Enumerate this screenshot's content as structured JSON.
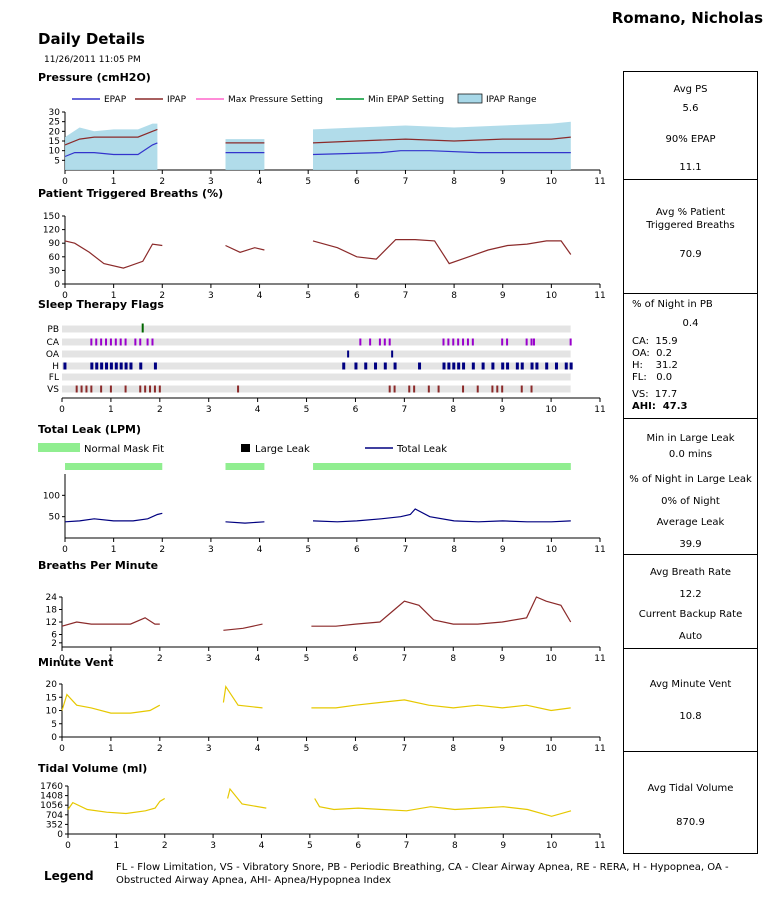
{
  "patient_name": "Romano, Nicholas",
  "page_title": "Daily Details",
  "report_datetime": "11/26/2011 11:05 PM",
  "colors": {
    "epap": "#3333cc",
    "ipap": "#8b2a2a",
    "max_pressure": "#ff66cc",
    "min_epap": "#009933",
    "ipap_range": "#a8d8e8",
    "triggered": "#8b2a2a",
    "ca": "#9900cc",
    "h": "#000080",
    "vs": "#8b2a2a",
    "pb": "#006600",
    "mask_fit": "#90ee90",
    "large_leak": "#000000",
    "total_leak": "#000080",
    "bpm": "#8b2a2a",
    "minute_vent": "#e6c800",
    "tidal": "#e6c800"
  },
  "chart_data": [
    {
      "id": "pressure",
      "type": "line",
      "title": "Pressure (cmH2O)",
      "legend": [
        "EPAP",
        "IPAP",
        "Max Pressure Setting",
        "Min EPAP Setting",
        "IPAP Range"
      ],
      "xlim": [
        0,
        11
      ],
      "ylim": [
        0,
        30
      ],
      "xticks": [
        "0",
        "1",
        "2",
        "3",
        "4",
        "5",
        "6",
        "7",
        "8",
        "9",
        "10",
        "11"
      ],
      "yticks": [
        "5",
        "10",
        "15",
        "20",
        "25",
        "30"
      ],
      "segments": [
        [
          0,
          1.9
        ],
        [
          3.3,
          4.1
        ],
        [
          5.1,
          10.4
        ]
      ],
      "series": [
        {
          "name": "EPAP",
          "x": [
            0,
            0.2,
            0.6,
            1.0,
            1.5,
            1.8,
            1.9,
            3.3,
            4.1,
            5.1,
            6.5,
            6.9,
            7.5,
            8.5,
            9.5,
            10.4
          ],
          "y": [
            7,
            9,
            9,
            8,
            8,
            13,
            14,
            9,
            9,
            8,
            9,
            10,
            10,
            9,
            9,
            9
          ]
        },
        {
          "name": "IPAP",
          "x": [
            0,
            0.3,
            0.6,
            1.0,
            1.5,
            1.8,
            1.9,
            3.3,
            4.1,
            5.1,
            6.0,
            7.0,
            8.0,
            9.0,
            10.0,
            10.4
          ],
          "y": [
            13,
            16,
            17,
            17,
            17,
            20,
            21,
            14,
            14,
            14,
            15,
            16,
            15,
            16,
            16,
            17
          ]
        },
        {
          "name": "IPAP Range",
          "x": [
            0,
            0.3,
            0.6,
            1.0,
            1.5,
            1.8,
            1.9,
            3.3,
            4.1,
            5.1,
            6.0,
            7.0,
            8.0,
            9.0,
            10.0,
            10.4
          ],
          "y": [
            17,
            22,
            20,
            21,
            21,
            24,
            24,
            16,
            16,
            21,
            22,
            23,
            22,
            23,
            24,
            25
          ]
        }
      ]
    },
    {
      "id": "triggered",
      "type": "line",
      "title": "Patient Triggered Breaths (%)",
      "xlim": [
        0,
        11
      ],
      "ylim": [
        0,
        150
      ],
      "xticks": [
        "0",
        "1",
        "2",
        "3",
        "4",
        "5",
        "6",
        "7",
        "8",
        "9",
        "10",
        "11"
      ],
      "yticks": [
        "0",
        "30",
        "60",
        "90",
        "120",
        "150"
      ],
      "segments": [
        [
          0,
          2.0
        ],
        [
          3.3,
          4.1
        ],
        [
          5.1,
          10.4
        ]
      ],
      "series": [
        {
          "name": "Triggered",
          "x": [
            0,
            0.2,
            0.5,
            0.8,
            1.2,
            1.6,
            1.8,
            2.0,
            3.3,
            3.6,
            3.9,
            4.1,
            5.1,
            5.6,
            6.0,
            6.4,
            6.8,
            7.2,
            7.6,
            7.9,
            8.3,
            8.7,
            9.1,
            9.5,
            9.9,
            10.2,
            10.4
          ],
          "y": [
            95,
            90,
            70,
            45,
            35,
            50,
            88,
            85,
            85,
            70,
            80,
            75,
            95,
            80,
            60,
            55,
            98,
            98,
            95,
            45,
            60,
            75,
            85,
            88,
            95,
            95,
            65
          ]
        }
      ]
    },
    {
      "id": "flags",
      "type": "scatter",
      "title": "Sleep Therapy Flags",
      "xlim": [
        0,
        11
      ],
      "xticks": [
        "0",
        "1",
        "2",
        "3",
        "4",
        "5",
        "6",
        "7",
        "8",
        "9",
        "10",
        "11"
      ],
      "rows": [
        "PB",
        "CA",
        "OA",
        "H",
        "FL",
        "VS"
      ],
      "events": {
        "PB": [
          1.65
        ],
        "CA": [
          0.6,
          0.7,
          0.8,
          0.9,
          1.0,
          1.1,
          1.2,
          1.3,
          1.5,
          1.6,
          1.75,
          1.85,
          6.1,
          6.3,
          6.5,
          6.6,
          6.7,
          7.8,
          7.9,
          8.0,
          8.1,
          8.2,
          8.3,
          8.4,
          9.0,
          9.1,
          9.5,
          9.6,
          9.65,
          10.4
        ],
        "OA": [
          5.85,
          6.75
        ],
        "H": [
          0.05,
          0.6,
          0.7,
          0.8,
          0.9,
          1.0,
          1.1,
          1.2,
          1.3,
          1.4,
          1.6,
          1.9,
          5.75,
          6.0,
          6.2,
          6.4,
          6.6,
          6.8,
          7.3,
          7.8,
          7.9,
          8.0,
          8.1,
          8.2,
          8.4,
          8.6,
          8.8,
          9.0,
          9.1,
          9.3,
          9.4,
          9.6,
          9.7,
          9.9,
          10.1,
          10.3,
          10.4
        ],
        "FL": [],
        "VS": [
          0.3,
          0.4,
          0.5,
          0.6,
          0.8,
          1.0,
          1.3,
          1.6,
          1.7,
          1.8,
          1.9,
          2.0,
          3.6,
          6.7,
          6.8,
          7.1,
          7.2,
          7.5,
          7.7,
          8.2,
          8.5,
          8.8,
          8.9,
          9.0,
          9.4,
          9.6
        ]
      }
    },
    {
      "id": "leak",
      "type": "line",
      "title": "Total Leak (LPM)",
      "legend": [
        "Normal Mask Fit",
        "Large Leak",
        "Total Leak"
      ],
      "xlim": [
        0,
        11
      ],
      "ylim": [
        0,
        150
      ],
      "xticks": [
        "0",
        "1",
        "2",
        "3",
        "4",
        "5",
        "6",
        "7",
        "8",
        "9",
        "10",
        "11"
      ],
      "yticks": [
        "50",
        "100"
      ],
      "mask_fit": [
        [
          0,
          2.0
        ],
        [
          3.3,
          4.1
        ],
        [
          5.1,
          10.4
        ]
      ],
      "segments": [
        [
          0,
          2.0
        ],
        [
          3.3,
          4.1
        ],
        [
          5.1,
          10.4
        ]
      ],
      "series": [
        {
          "name": "Total Leak",
          "x": [
            0,
            0.3,
            0.6,
            1.0,
            1.4,
            1.7,
            1.9,
            2.0,
            3.3,
            3.7,
            4.1,
            5.1,
            5.6,
            6.0,
            6.5,
            6.9,
            7.1,
            7.2,
            7.5,
            8.0,
            8.5,
            9.0,
            9.5,
            10.0,
            10.4
          ],
          "y": [
            38,
            40,
            45,
            40,
            40,
            45,
            55,
            58,
            38,
            35,
            38,
            40,
            38,
            40,
            45,
            50,
            55,
            68,
            50,
            40,
            38,
            40,
            38,
            38,
            40
          ]
        }
      ]
    },
    {
      "id": "bpm",
      "type": "line",
      "title": "Breaths Per Minute",
      "xlim": [
        0,
        11
      ],
      "ylim": [
        0,
        24
      ],
      "xticks": [
        "0",
        "1",
        "2",
        "3",
        "4",
        "5",
        "6",
        "7",
        "8",
        "9",
        "10",
        "11"
      ],
      "yticks": [
        "2",
        "6",
        "12",
        "18",
        "24"
      ],
      "segments": [
        [
          0,
          2.0
        ],
        [
          3.3,
          4.1
        ],
        [
          5.1,
          10.4
        ]
      ],
      "series": [
        {
          "name": "BPM",
          "x": [
            0,
            0.3,
            0.6,
            1.0,
            1.4,
            1.7,
            1.9,
            2.0,
            3.3,
            3.7,
            4.1,
            5.1,
            5.6,
            6.0,
            6.5,
            6.8,
            7.0,
            7.3,
            7.6,
            8.0,
            8.5,
            9.0,
            9.5,
            9.7,
            9.9,
            10.2,
            10.4
          ],
          "y": [
            10,
            12,
            11,
            11,
            11,
            14,
            11,
            11,
            8,
            9,
            11,
            10,
            10,
            11,
            12,
            18,
            22,
            20,
            13,
            11,
            11,
            12,
            14,
            24,
            22,
            20,
            12
          ]
        }
      ]
    },
    {
      "id": "minvent",
      "type": "line",
      "title": "Minute Vent",
      "xlim": [
        0,
        11
      ],
      "ylim": [
        0,
        20
      ],
      "xticks": [
        "0",
        "1",
        "2",
        "3",
        "4",
        "5",
        "6",
        "7",
        "8",
        "9",
        "10",
        "11"
      ],
      "yticks": [
        "0",
        "5",
        "10",
        "15",
        "20"
      ],
      "segments": [
        [
          0,
          2.0
        ],
        [
          3.3,
          4.1
        ],
        [
          5.1,
          10.4
        ]
      ],
      "series": [
        {
          "name": "Minute Vent",
          "x": [
            0,
            0.1,
            0.3,
            0.6,
            1.0,
            1.4,
            1.8,
            2.0,
            3.3,
            3.35,
            3.6,
            4.1,
            5.1,
            5.6,
            6.0,
            6.5,
            7.0,
            7.5,
            8.0,
            8.5,
            9.0,
            9.5,
            10.0,
            10.4
          ],
          "y": [
            10,
            16,
            12,
            11,
            9,
            9,
            10,
            12,
            13,
            19,
            12,
            11,
            11,
            11,
            12,
            13,
            14,
            12,
            11,
            12,
            11,
            12,
            10,
            11
          ]
        }
      ]
    },
    {
      "id": "tidal",
      "type": "line",
      "title": "Tidal Volume (ml)",
      "xlim": [
        0,
        11
      ],
      "ylim": [
        0,
        1760
      ],
      "xticks": [
        "0",
        "1",
        "2",
        "3",
        "4",
        "5",
        "6",
        "7",
        "8",
        "9",
        "10",
        "11"
      ],
      "yticks": [
        "0",
        "352",
        "704",
        "1056",
        "1408",
        "1760"
      ],
      "segments": [
        [
          0,
          2.0
        ],
        [
          3.3,
          4.1
        ],
        [
          5.1,
          10.4
        ]
      ],
      "series": [
        {
          "name": "Tidal Volume",
          "x": [
            0,
            0.1,
            0.4,
            0.8,
            1.2,
            1.6,
            1.8,
            1.9,
            2.0,
            3.3,
            3.35,
            3.6,
            4.1,
            5.1,
            5.2,
            5.5,
            6.0,
            6.5,
            7.0,
            7.5,
            8.0,
            8.5,
            9.0,
            9.5,
            10.0,
            10.4
          ],
          "y": [
            900,
            1150,
            900,
            800,
            750,
            850,
            950,
            1200,
            1300,
            1300,
            1650,
            1100,
            950,
            1300,
            1000,
            900,
            950,
            900,
            850,
            1000,
            900,
            950,
            1000,
            900,
            650,
            850
          ]
        }
      ]
    }
  ],
  "stats": {
    "pressure": {
      "avg_ps_label": "Avg PS",
      "avg_ps": "5.6",
      "epap90_label": "90% EPAP",
      "epap90": "11.1"
    },
    "triggered": {
      "label_1": "Avg % Patient",
      "label_2": "Triggered Breaths",
      "value": "70.9"
    },
    "flags": {
      "pb_label": "% of Night in PB",
      "pb": "0.4",
      "ca": "CA:  15.9",
      "oa": "OA:  0.2",
      "h": "H:    31.2",
      "fl": "FL:   0.0",
      "vs": "VS:  17.7",
      "ahi": "AHI:  47.3"
    },
    "leak": {
      "min_large_label": "Min in Large Leak",
      "min_large": "0.0 mins",
      "pct_large_label": "% of Night in Large Leak",
      "pct_large": "0% of Night",
      "avg_leak_label": "Average Leak",
      "avg_leak": "39.9"
    },
    "bpm": {
      "avg_label": "Avg Breath Rate",
      "avg": "12.2",
      "backup_label": "Current Backup Rate",
      "backup": "Auto"
    },
    "minvent": {
      "label": "Avg Minute Vent",
      "value": "10.8"
    },
    "tidal": {
      "label": "Avg Tidal Volume",
      "value": "870.9"
    }
  },
  "legend": {
    "label": "Legend",
    "text": "FL - Flow Limitation, VS - Vibratory Snore, PB - Periodic Breathing, CA - Clear Airway Apnea, RE - RERA, H - Hypopnea, OA - Obstructed Airway Apnea, AHI- Apnea/Hypopnea Index"
  }
}
